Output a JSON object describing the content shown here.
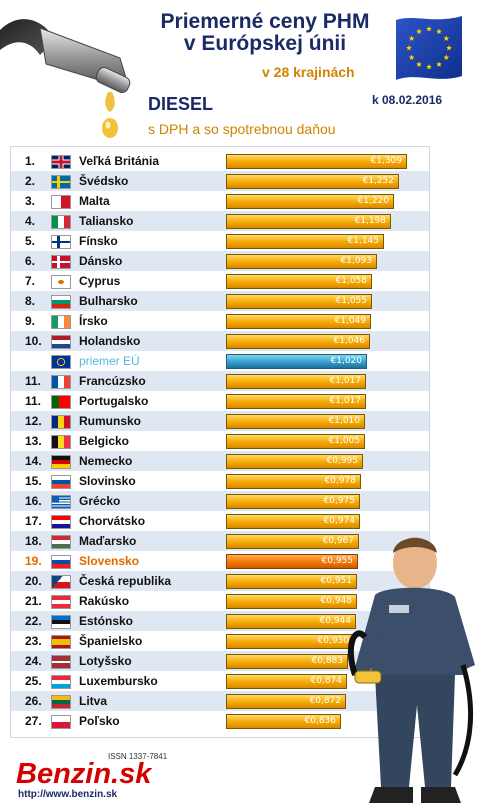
{
  "header": {
    "title_line1": "Priemerné ceny PHM",
    "title_line2": "v Európskej únii",
    "subtitle": "v 28 krajinách",
    "fuel": "DIESEL",
    "date": "k 08.02.2016",
    "tax_note": "s DPH a so spotrebnou daňou"
  },
  "logo": {
    "issn": "ISSN 1337-7841",
    "name": "Benzin.sk",
    "url": "http://www.benzin.sk"
  },
  "colors": {
    "bar": "#f4a800",
    "average_bar": "#2f9bc9",
    "highlight_bar": "#f07800",
    "title": "#1a2a66",
    "accent": "#d28400"
  },
  "chart_data": {
    "type": "bar",
    "orientation": "horizontal",
    "rows": [
      {
        "rank": "1.",
        "country": "Veľká Británia",
        "flag": "gb",
        "value": 1.309,
        "label": "€1,309"
      },
      {
        "rank": "2.",
        "country": "Švédsko",
        "flag": "se",
        "value": 1.252,
        "label": "€1,252"
      },
      {
        "rank": "3.",
        "country": "Malta",
        "flag": "mt",
        "value": 1.22,
        "label": "€1,220"
      },
      {
        "rank": "4.",
        "country": "Taliansko",
        "flag": "it",
        "value": 1.198,
        "label": "€1,198"
      },
      {
        "rank": "5.",
        "country": "Fínsko",
        "flag": "fi",
        "value": 1.145,
        "label": "€1,145"
      },
      {
        "rank": "6.",
        "country": "Dánsko",
        "flag": "dk",
        "value": 1.093,
        "label": "€1,093"
      },
      {
        "rank": "7.",
        "country": "Cyprus",
        "flag": "cy",
        "value": 1.058,
        "label": "€1,058"
      },
      {
        "rank": "8.",
        "country": "Bulharsko",
        "flag": "bg",
        "value": 1.055,
        "label": "€1,055"
      },
      {
        "rank": "9.",
        "country": "Írsko",
        "flag": "ie",
        "value": 1.049,
        "label": "€1,049"
      },
      {
        "rank": "10.",
        "country": "Holandsko",
        "flag": "nl",
        "value": 1.046,
        "label": "€1,046"
      },
      {
        "rank": "",
        "country": "priemer EÚ",
        "flag": "eu",
        "value": 1.02,
        "label": "€1,020",
        "kind": "average"
      },
      {
        "rank": "11.",
        "country": "Francúzsko",
        "flag": "fr",
        "value": 1.017,
        "label": "€1,017"
      },
      {
        "rank": "11.",
        "country": "Portugalsko",
        "flag": "pt",
        "value": 1.017,
        "label": "€1,017"
      },
      {
        "rank": "12.",
        "country": "Rumunsko",
        "flag": "ro",
        "value": 1.01,
        "label": "€1,010"
      },
      {
        "rank": "13.",
        "country": "Belgicko",
        "flag": "be",
        "value": 1.005,
        "label": "€1,005"
      },
      {
        "rank": "14.",
        "country": "Nemecko",
        "flag": "de",
        "value": 0.995,
        "label": "€0,995"
      },
      {
        "rank": "15.",
        "country": "Slovinsko",
        "flag": "si",
        "value": 0.978,
        "label": "€0,978"
      },
      {
        "rank": "16.",
        "country": "Grécko",
        "flag": "gr",
        "value": 0.975,
        "label": "€0,975"
      },
      {
        "rank": "17.",
        "country": "Chorvátsko",
        "flag": "hr",
        "value": 0.974,
        "label": "€0,974"
      },
      {
        "rank": "18.",
        "country": "Maďarsko",
        "flag": "hu",
        "value": 0.967,
        "label": "€0,967"
      },
      {
        "rank": "19.",
        "country": "Slovensko",
        "flag": "sk",
        "value": 0.955,
        "label": "€0,955",
        "kind": "highlight"
      },
      {
        "rank": "20.",
        "country": "Česká republika",
        "flag": "cz",
        "value": 0.951,
        "label": "€0,951"
      },
      {
        "rank": "21.",
        "country": "Rakúsko",
        "flag": "at",
        "value": 0.948,
        "label": "€0,948"
      },
      {
        "rank": "22.",
        "country": "Estónsko",
        "flag": "ee",
        "value": 0.944,
        "label": "€0,944"
      },
      {
        "rank": "23.",
        "country": "Španielsko",
        "flag": "es",
        "value": 0.93,
        "label": "€0,930"
      },
      {
        "rank": "24.",
        "country": "Lotyšsko",
        "flag": "lv",
        "value": 0.883,
        "label": "€0,883"
      },
      {
        "rank": "25.",
        "country": "Luxembursko",
        "flag": "lu",
        "value": 0.874,
        "label": "€0,874"
      },
      {
        "rank": "26.",
        "country": "Litva",
        "flag": "lt",
        "value": 0.872,
        "label": "€0,872"
      },
      {
        "rank": "27.",
        "country": "Poľsko",
        "flag": "pl",
        "value": 0.836,
        "label": "€0,836"
      }
    ]
  }
}
